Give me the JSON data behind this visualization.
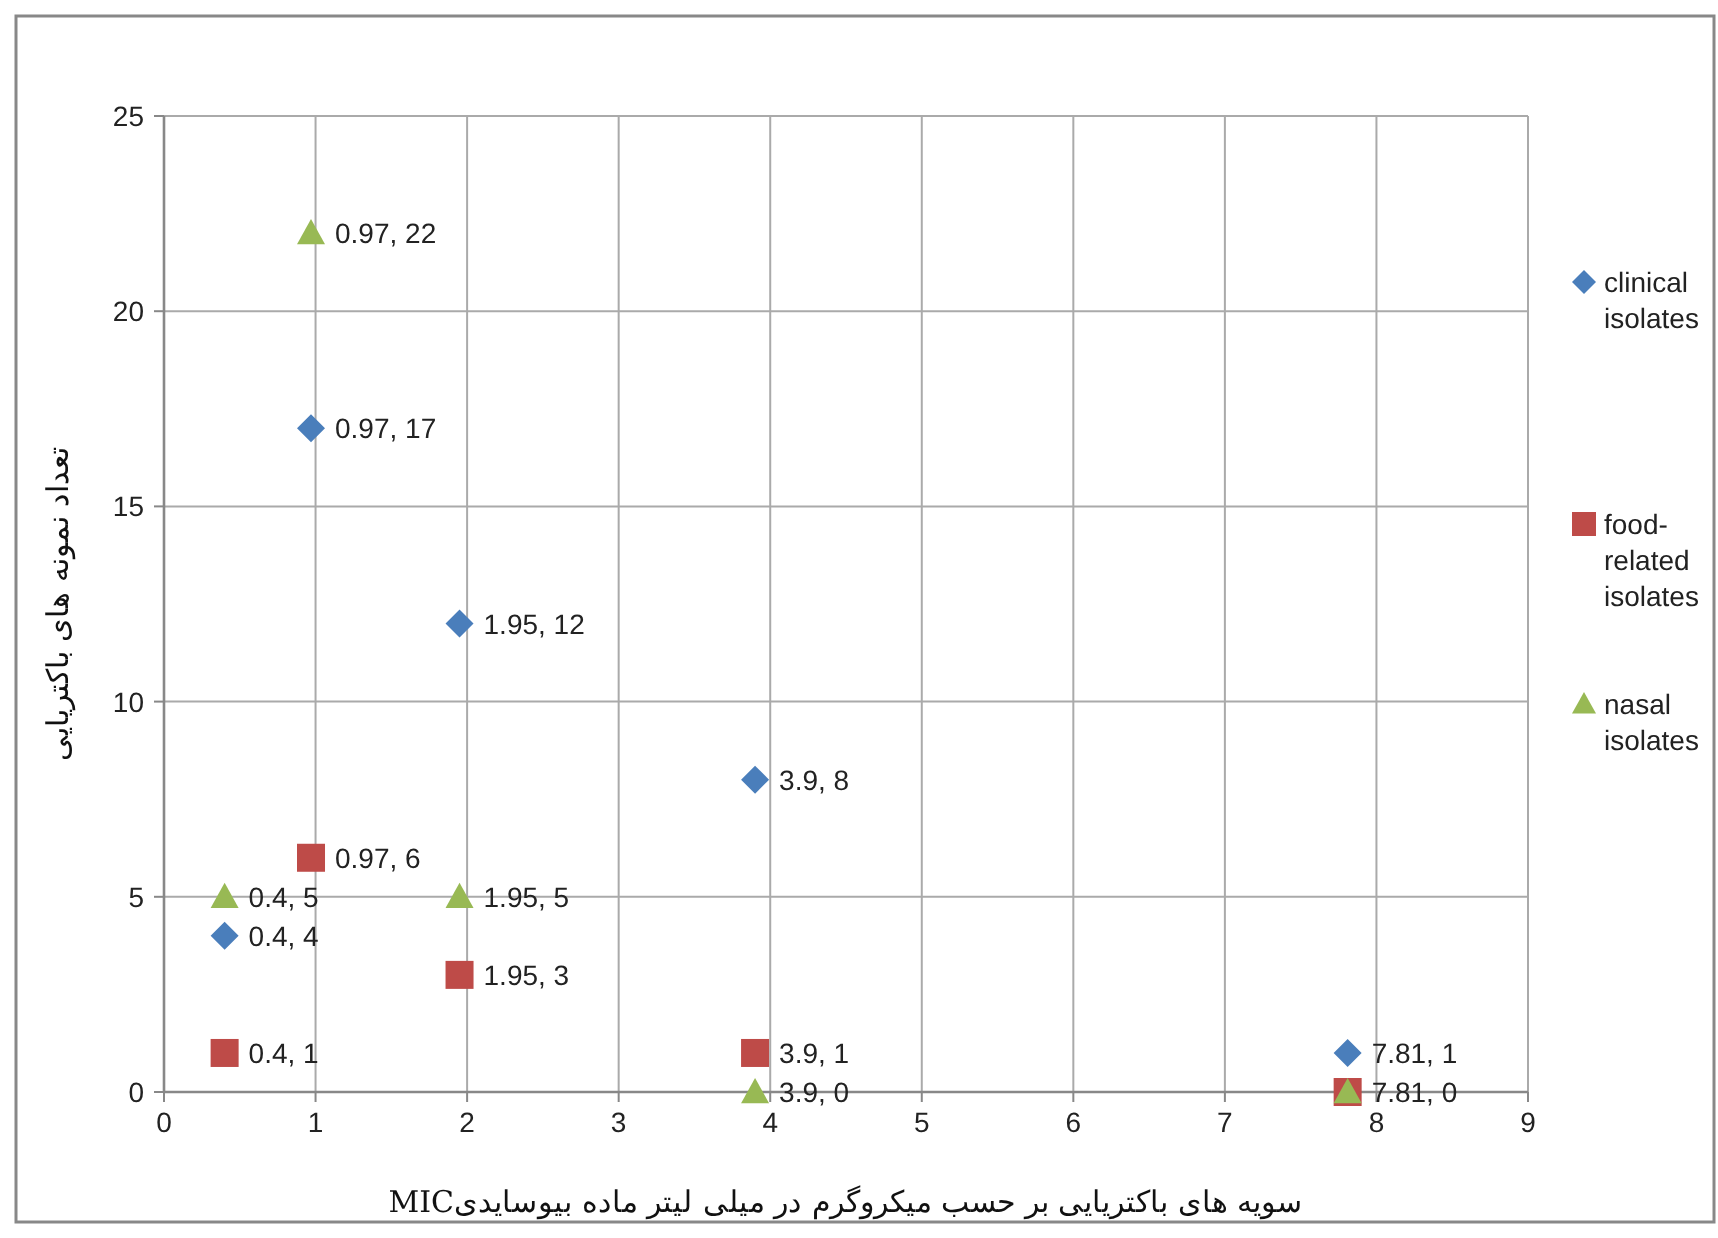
{
  "chart_data": {
    "type": "scatter",
    "xlabel": "MICسویه های باکتریایی بر حسب میکروگرم در میلی لیتر ماده بیوسایدی",
    "ylabel": "تعداد نمونه های باکتریایی",
    "series": [
      {
        "name": "clinical isolates",
        "color": "#4a7ebb",
        "marker": "diamond",
        "x": [
          0.4,
          0.97,
          1.95,
          3.9,
          7.81
        ],
        "values": [
          4,
          17,
          12,
          8,
          1
        ],
        "value_labels": [
          "0.4, 4",
          "0.97, 17",
          "1.95, 12",
          "3.9, 8",
          "7.81, 1"
        ]
      },
      {
        "name": "food-related isolates",
        "color": "#be4b48",
        "marker": "square",
        "x": [
          0.4,
          0.97,
          1.95,
          3.9,
          7.81
        ],
        "values": [
          1,
          6,
          3,
          1,
          0
        ],
        "value_labels": [
          "0.4, 1",
          "0.97, 6",
          "1.95, 3",
          "3.9, 1",
          "7.81, 0"
        ]
      },
      {
        "name": "nasal isolates",
        "color": "#98b954",
        "marker": "triangle",
        "x": [
          0.4,
          0.97,
          1.95,
          3.9,
          7.81
        ],
        "values": [
          5,
          22,
          5,
          0,
          0
        ],
        "value_labels": [
          "0.4, 5",
          "0.97, 22",
          "1.95, 5",
          "3.9, 0",
          null
        ]
      }
    ],
    "xlim": [
      0,
      9
    ],
    "xticks": [
      0,
      1,
      2,
      3,
      4,
      5,
      6,
      7,
      8,
      9
    ],
    "ylim": [
      0,
      25
    ],
    "yticks": [
      0,
      5,
      10,
      15,
      20,
      25
    ],
    "grid": true,
    "legend": "right"
  }
}
